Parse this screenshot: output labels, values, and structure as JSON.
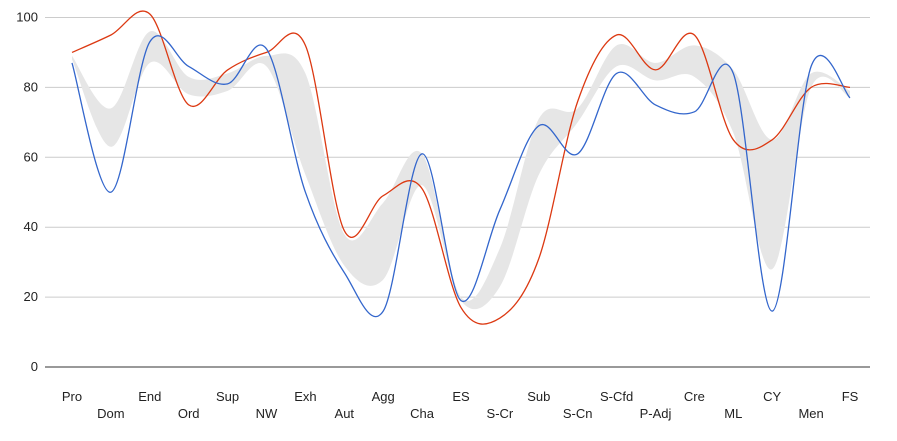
{
  "chart_data": {
    "type": "line",
    "categories": [
      "Pro",
      "Dom",
      "End",
      "Ord",
      "Sup",
      "NW",
      "Exh",
      "Aut",
      "Agg",
      "Cha",
      "ES",
      "S-Cr",
      "Sub",
      "S-Cn",
      "S-Cfd",
      "P-Adj",
      "Cre",
      "ML",
      "CY",
      "Men",
      "FS"
    ],
    "series": [
      {
        "color": "#dc3912",
        "values": [
          90,
          95,
          101,
          75,
          85,
          90,
          92,
          39,
          49,
          51,
          17,
          14,
          31,
          76,
          95,
          85,
          95,
          65,
          65,
          80,
          80
        ]
      },
      {
        "color": "#3366cc",
        "values": [
          87,
          50,
          93,
          86,
          81,
          91,
          50,
          27,
          16,
          61,
          19,
          45,
          69,
          61,
          84,
          75,
          73,
          84,
          16,
          86,
          77
        ]
      }
    ],
    "band": {
      "color": "#e6e6e6",
      "lower": [
        88,
        63,
        87,
        78,
        79,
        86,
        55,
        29,
        25,
        52,
        19,
        23,
        55,
        70,
        86,
        82,
        83,
        67,
        28,
        80,
        77
      ],
      "upper": [
        89,
        74,
        96,
        83,
        84,
        89,
        84,
        38,
        47,
        61,
        20,
        34,
        71,
        74,
        92,
        87,
        92,
        85,
        65,
        84,
        79
      ]
    },
    "ylim": [
      0,
      105
    ],
    "yticks": [
      0,
      20,
      40,
      60,
      80,
      100
    ],
    "grid": true,
    "legend": "none"
  }
}
